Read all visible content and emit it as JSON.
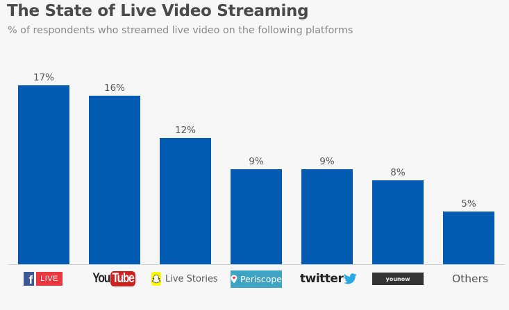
{
  "header": {
    "title": "The State of Live Video Streaming",
    "subtitle": "% of respondents who streamed live video on the following platforms"
  },
  "bars": [
    {
      "label": "Facebook Live",
      "value": 17,
      "value_label": "17%"
    },
    {
      "label": "YouTube",
      "value": 16,
      "value_label": "16%"
    },
    {
      "label": "Snapchat Live Stories",
      "value": 12,
      "value_label": "12%"
    },
    {
      "label": "Periscope",
      "value": 9,
      "value_label": "9%"
    },
    {
      "label": "Twitter",
      "value": 9,
      "value_label": "9%"
    },
    {
      "label": "YouNow",
      "value": 8,
      "value_label": "8%"
    },
    {
      "label": "Others",
      "value": 5,
      "value_label": "5%"
    }
  ],
  "logos": {
    "facebook": {
      "f": "f",
      "live": "LIVE"
    },
    "youtube": {
      "you": "You",
      "tube": "Tube"
    },
    "snapchat": {
      "text": "Live Stories"
    },
    "periscope": {
      "text": "Periscope"
    },
    "twitter": {
      "text": "twitter"
    },
    "younow": {
      "text": "younow"
    },
    "others": {
      "text": "Others"
    }
  },
  "colors": {
    "bar": "#005bb1",
    "background": "#f7f7f7",
    "facebook_blue": "#3b5998",
    "facebook_live_red": "#e9383f",
    "youtube_red": "#cd201f",
    "snapchat_yellow": "#fffc00",
    "periscope_blue": "#3fa3c4",
    "twitter_blue": "#1da1f2",
    "younow_dark": "#333333"
  },
  "chart_data": {
    "type": "bar",
    "title": "The State of Live Video Streaming",
    "subtitle": "% of respondents who streamed live video on the following platforms",
    "categories": [
      "Facebook Live",
      "YouTube",
      "Snapchat Live Stories",
      "Periscope",
      "Twitter",
      "YouNow",
      "Others"
    ],
    "values": [
      17,
      16,
      12,
      9,
      9,
      8,
      5
    ],
    "data_labels": [
      "17%",
      "16%",
      "12%",
      "9%",
      "9%",
      "8%",
      "5%"
    ],
    "xlabel": "",
    "ylabel": "% of respondents",
    "ylim": [
      0,
      17
    ],
    "grid": false,
    "legend": null,
    "unit": "%"
  }
}
